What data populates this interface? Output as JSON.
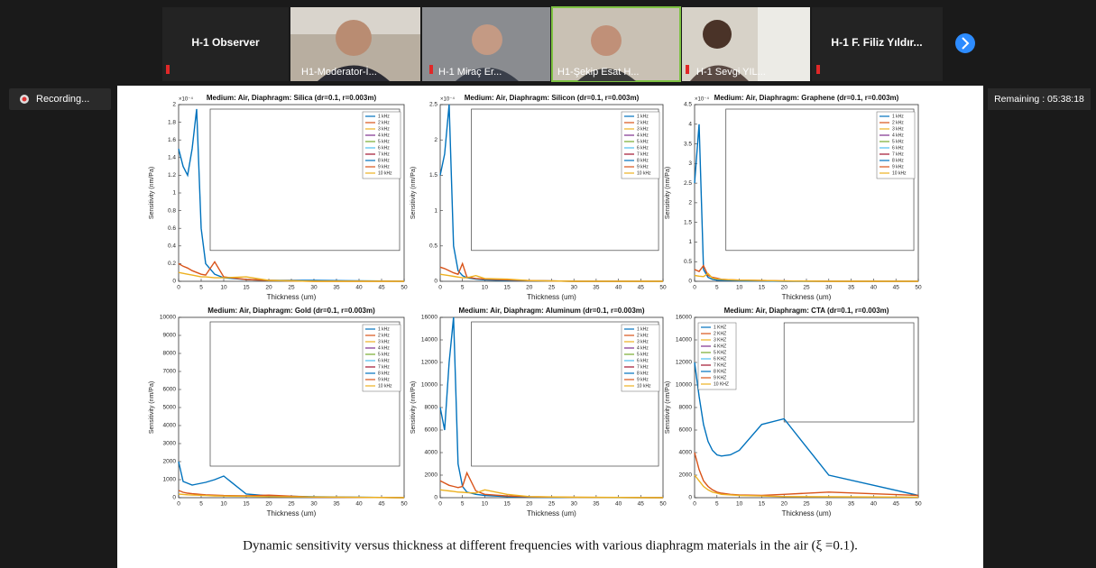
{
  "meeting": {
    "participants": [
      {
        "name": "H-1 Observer"
      },
      {
        "name": "H1-Moderator-İ..."
      },
      {
        "name": "H-1 Miraç Er..."
      },
      {
        "name": "H1-Şekip Esat H..."
      },
      {
        "name": "H-1 Sevgi YIL..."
      },
      {
        "name": "H-1 F. Filiz Yıldır..."
      }
    ],
    "recording": "Recording...",
    "remaining": "Remaining : 05:38:18"
  },
  "caption": "Dynamic sensitivity versus thickness at different frequencies with various diaphragm materials in the air (ξ =0.1).",
  "chart_data": [
    {
      "type": "line",
      "title": "Medium: Air, Diaphragm: Silica (dr=0.1, r=0.003m)",
      "x_label": "Thickness (um)",
      "y_label": "Sensitivity (nm/Pa)",
      "y_exponent": "×10⁻⁴",
      "legend": "upper right",
      "x": [
        0,
        1,
        2,
        3,
        4,
        5,
        6,
        8,
        10,
        15,
        20,
        30,
        50
      ],
      "xlim": [
        0,
        50
      ],
      "xticks": [
        0,
        5,
        10,
        15,
        20,
        25,
        30,
        35,
        40,
        45,
        50
      ],
      "ylim": [
        0,
        2
      ],
      "yticks": [
        0,
        0.2,
        0.4,
        0.6,
        0.8,
        1,
        1.2,
        1.4,
        1.6,
        1.8,
        2
      ],
      "series": [
        {
          "name": "1 kHz",
          "color": "#0072BD",
          "values": [
            1.5,
            1.3,
            1.2,
            1.5,
            1.95,
            0.6,
            0.2,
            0.08,
            0.04,
            0.02,
            0.01,
            0.01,
            0
          ]
        },
        {
          "name": "2 kHz",
          "color": "#D95319",
          "values": [
            0.2,
            0.17,
            0.15,
            0.12,
            0.1,
            0.08,
            0.07,
            0.22,
            0.05,
            0.02,
            0.01,
            0,
            0
          ]
        },
        {
          "name": "3 kHz",
          "color": "#EDB120",
          "values": [
            0.1,
            0.09,
            0.08,
            0.07,
            0.06,
            0.05,
            0.05,
            0.04,
            0.04,
            0.05,
            0.01,
            0,
            0
          ]
        },
        {
          "name": "4 kHz",
          "color": "#7E2F8E"
        },
        {
          "name": "5 kHz",
          "color": "#77AC30"
        },
        {
          "name": "6 kHz",
          "color": "#4DBEEE"
        },
        {
          "name": "7 kHz",
          "color": "#A2142F"
        },
        {
          "name": "8 kHz",
          "color": "#0072BD"
        },
        {
          "name": "9 kHz",
          "color": "#D95319"
        },
        {
          "name": "10 kHz",
          "color": "#EDB120"
        }
      ]
    },
    {
      "type": "line",
      "title": "Medium: Air, Diaphragm: Silicon (dr=0.1, r=0.003m)",
      "x_label": "Thickness (um)",
      "y_label": "Sensitivity (nm/Pa)",
      "y_exponent": "×10⁻⁴",
      "legend": "upper right",
      "x": [
        0,
        1,
        2,
        3,
        4,
        5,
        6,
        8,
        10,
        15,
        20,
        30,
        50
      ],
      "xlim": [
        0,
        50
      ],
      "xticks": [
        0,
        5,
        10,
        15,
        20,
        25,
        30,
        35,
        40,
        45,
        50
      ],
      "ylim": [
        0,
        2.5
      ],
      "yticks": [
        0,
        0.5,
        1,
        1.5,
        2,
        2.5
      ],
      "series": [
        {
          "name": "1 kHz",
          "color": "#0072BD",
          "values": [
            1.5,
            1.8,
            2.5,
            0.5,
            0.15,
            0.08,
            0.05,
            0.03,
            0.02,
            0.01,
            0.01,
            0,
            0
          ]
        },
        {
          "name": "2 kHz",
          "color": "#D95319",
          "values": [
            0.2,
            0.18,
            0.15,
            0.12,
            0.1,
            0.25,
            0.06,
            0.04,
            0.03,
            0.02,
            0.01,
            0,
            0
          ]
        },
        {
          "name": "3 kHz",
          "color": "#EDB120",
          "values": [
            0.1,
            0.09,
            0.08,
            0.07,
            0.06,
            0.05,
            0.05,
            0.08,
            0.04,
            0.03,
            0.01,
            0,
            0
          ]
        },
        {
          "name": "4 kHz",
          "color": "#7E2F8E"
        },
        {
          "name": "5 kHz",
          "color": "#77AC30"
        },
        {
          "name": "6 kHz",
          "color": "#4DBEEE"
        },
        {
          "name": "7 kHz",
          "color": "#A2142F"
        },
        {
          "name": "8 kHz",
          "color": "#0072BD"
        },
        {
          "name": "9 kHz",
          "color": "#D95319"
        },
        {
          "name": "10 kHz",
          "color": "#EDB120"
        }
      ]
    },
    {
      "type": "line",
      "title": "Medium: Air, Diaphragm: Graphene (dr=0.1, r=0.003m)",
      "x_label": "Thickness (um)",
      "y_label": "Sensitivity (nm/Pa)",
      "y_exponent": "×10⁻⁴",
      "legend": "upper right",
      "x": [
        0,
        1,
        2,
        3,
        4,
        5,
        6,
        8,
        10,
        15,
        20,
        30,
        50
      ],
      "xlim": [
        0,
        50
      ],
      "xticks": [
        0,
        5,
        10,
        15,
        20,
        25,
        30,
        35,
        40,
        45,
        50
      ],
      "ylim": [
        0,
        4.5
      ],
      "yticks": [
        0,
        0.5,
        1,
        1.5,
        2,
        2.5,
        3,
        3.5,
        4,
        4.5
      ],
      "series": [
        {
          "name": "1 kHz",
          "color": "#0072BD",
          "values": [
            2.5,
            4,
            0.3,
            0.1,
            0.05,
            0.03,
            0.02,
            0.02,
            0.01,
            0.01,
            0,
            0,
            0
          ]
        },
        {
          "name": "2 kHz",
          "color": "#D95319",
          "values": [
            0.3,
            0.25,
            0.4,
            0.15,
            0.1,
            0.08,
            0.05,
            0.04,
            0.03,
            0.02,
            0.01,
            0,
            0
          ]
        },
        {
          "name": "3 kHz",
          "color": "#EDB120",
          "values": [
            0.15,
            0.13,
            0.12,
            0.2,
            0.08,
            0.06,
            0.05,
            0.04,
            0.03,
            0.02,
            0.01,
            0,
            0
          ]
        },
        {
          "name": "4 kHz",
          "color": "#7E2F8E"
        },
        {
          "name": "5 kHz",
          "color": "#77AC30"
        },
        {
          "name": "6 kHz",
          "color": "#4DBEEE"
        },
        {
          "name": "7 kHz",
          "color": "#A2142F"
        },
        {
          "name": "8 kHz",
          "color": "#0072BD"
        },
        {
          "name": "9 kHz",
          "color": "#D95319"
        },
        {
          "name": "10 kHz",
          "color": "#EDB120"
        }
      ]
    },
    {
      "type": "line",
      "title": "Medium: Air, Diaphragm: Gold (dr=0.1, r=0.003m)",
      "x_label": "Thickness (um)",
      "y_label": "Sensitivity (nm/Pa)",
      "legend": "upper right",
      "x": [
        0,
        1,
        2,
        3,
        4,
        5,
        6,
        8,
        10,
        15,
        20,
        30,
        50
      ],
      "xlim": [
        0,
        50
      ],
      "xticks": [
        0,
        5,
        10,
        15,
        20,
        25,
        30,
        35,
        40,
        45,
        50
      ],
      "ylim": [
        0,
        10000
      ],
      "yticks": [
        0,
        1000,
        2000,
        3000,
        4000,
        5000,
        6000,
        7000,
        8000,
        9000,
        10000
      ],
      "series": [
        {
          "name": "1 kHz",
          "color": "#0072BD",
          "values": [
            2000,
            900,
            800,
            700,
            750,
            800,
            850,
            1000,
            1200,
            200,
            100,
            50,
            0
          ]
        },
        {
          "name": "2 kHz",
          "color": "#D95319",
          "values": [
            400,
            300,
            250,
            220,
            200,
            180,
            160,
            140,
            120,
            100,
            140,
            30,
            0
          ]
        },
        {
          "name": "3 kHz",
          "color": "#EDB120",
          "values": [
            200,
            180,
            160,
            150,
            140,
            130,
            120,
            100,
            90,
            80,
            60,
            40,
            0
          ]
        },
        {
          "name": "4 kHz",
          "color": "#7E2F8E"
        },
        {
          "name": "5 kHz",
          "color": "#77AC30"
        },
        {
          "name": "6 kHz",
          "color": "#4DBEEE"
        },
        {
          "name": "7 kHz",
          "color": "#A2142F"
        },
        {
          "name": "8 kHz",
          "color": "#0072BD"
        },
        {
          "name": "9 kHz",
          "color": "#D95319"
        },
        {
          "name": "10 kHz",
          "color": "#EDB120"
        }
      ]
    },
    {
      "type": "line",
      "title": "Medium: Air, Diaphragm: Aluminum (dr=0.1, r=0.003m)",
      "x_label": "Thickness (um)",
      "y_label": "Sensitivity (nm/Pa)",
      "legend": "upper right",
      "x": [
        0,
        1,
        2,
        3,
        4,
        5,
        6,
        8,
        10,
        15,
        20,
        30,
        50
      ],
      "xlim": [
        0,
        50
      ],
      "xticks": [
        0,
        5,
        10,
        15,
        20,
        25,
        30,
        35,
        40,
        45,
        50
      ],
      "ylim": [
        0,
        16000
      ],
      "yticks": [
        0,
        2000,
        4000,
        6000,
        8000,
        10000,
        12000,
        14000,
        16000
      ],
      "series": [
        {
          "name": "1 kHz",
          "color": "#0072BD",
          "values": [
            8000,
            6000,
            12000,
            16000,
            3000,
            1000,
            500,
            300,
            200,
            100,
            50,
            20,
            0
          ]
        },
        {
          "name": "2 kHz",
          "color": "#D95319",
          "values": [
            1500,
            1300,
            1100,
            1000,
            900,
            1000,
            2200,
            600,
            300,
            150,
            80,
            30,
            0
          ]
        },
        {
          "name": "3 kHz",
          "color": "#EDB120",
          "values": [
            700,
            650,
            600,
            550,
            500,
            480,
            450,
            420,
            700,
            300,
            100,
            40,
            0
          ]
        },
        {
          "name": "4 kHz",
          "color": "#7E2F8E"
        },
        {
          "name": "5 kHz",
          "color": "#77AC30"
        },
        {
          "name": "6 kHz",
          "color": "#4DBEEE"
        },
        {
          "name": "7 kHz",
          "color": "#A2142F"
        },
        {
          "name": "8 kHz",
          "color": "#0072BD"
        },
        {
          "name": "9 kHz",
          "color": "#D95319"
        },
        {
          "name": "10 kHz",
          "color": "#EDB120"
        }
      ]
    },
    {
      "type": "line",
      "title": "Medium: Air, Diaphragm: CTA (dr=0.1, r=0.003m)",
      "x_label": "Thickness (um)",
      "y_label": "Sensitivity (nm/Pa)",
      "legend": "upper left",
      "x": [
        0,
        1,
        2,
        3,
        4,
        5,
        6,
        8,
        10,
        15,
        20,
        30,
        50
      ],
      "xlim": [
        0,
        50
      ],
      "xticks": [
        0,
        5,
        10,
        15,
        20,
        25,
        30,
        35,
        40,
        45,
        50
      ],
      "ylim": [
        0,
        16000
      ],
      "yticks": [
        0,
        2000,
        4000,
        6000,
        8000,
        10000,
        12000,
        14000,
        16000
      ],
      "series": [
        {
          "name": "1 KHZ",
          "color": "#0072BD",
          "values": [
            12000,
            9000,
            6500,
            5000,
            4200,
            3800,
            3700,
            3800,
            4200,
            6500,
            7000,
            2000,
            200
          ]
        },
        {
          "name": "2 KHZ",
          "color": "#D95319",
          "values": [
            4000,
            2500,
            1500,
            1000,
            700,
            500,
            400,
            300,
            250,
            200,
            300,
            500,
            200
          ]
        },
        {
          "name": "3 KHZ",
          "color": "#EDB120",
          "values": [
            2000,
            1500,
            1000,
            700,
            500,
            400,
            300,
            250,
            200,
            150,
            100,
            80,
            50
          ]
        },
        {
          "name": "4 KHZ",
          "color": "#7E2F8E"
        },
        {
          "name": "5 KHZ",
          "color": "#77AC30"
        },
        {
          "name": "6 KHZ",
          "color": "#4DBEEE"
        },
        {
          "name": "7 KHZ",
          "color": "#A2142F"
        },
        {
          "name": "8 KHZ",
          "color": "#0072BD"
        },
        {
          "name": "9 KHZ",
          "color": "#D95319"
        },
        {
          "name": "10 KHZ",
          "color": "#EDB120"
        }
      ]
    }
  ]
}
